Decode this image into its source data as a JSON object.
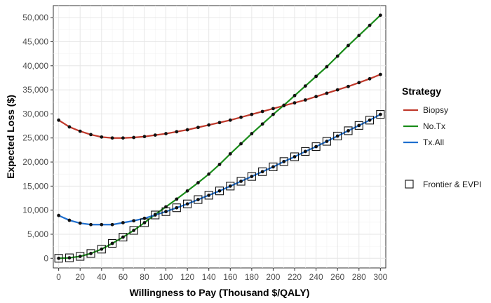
{
  "chart_data": {
    "type": "line",
    "xlabel": "Willingness to Pay (Thousand $/QALY)",
    "ylabel": "Expected Loss ($)",
    "xlim": [
      -5,
      305
    ],
    "ylim": [
      -2000,
      52500
    ],
    "xticks": [
      0,
      20,
      40,
      60,
      80,
      100,
      120,
      140,
      160,
      180,
      200,
      220,
      240,
      260,
      280,
      300
    ],
    "xtick_labels": [
      "0",
      "20",
      "40",
      "60",
      "80",
      "100",
      "120",
      "140",
      "160",
      "180",
      "200",
      "220",
      "240",
      "260",
      "280",
      "300"
    ],
    "yticks": [
      0,
      5000,
      10000,
      15000,
      20000,
      25000,
      30000,
      35000,
      40000,
      45000,
      50000
    ],
    "ytick_labels": [
      "0",
      "5,000",
      "10,000",
      "15,000",
      "20,000",
      "25,000",
      "30,000",
      "35,000",
      "40,000",
      "45,000",
      "50,000"
    ],
    "grid": true,
    "legend_position": "right",
    "legend_title": "Strategy",
    "x": [
      0,
      10,
      20,
      30,
      40,
      50,
      60,
      70,
      80,
      90,
      100,
      110,
      120,
      130,
      140,
      150,
      160,
      170,
      180,
      190,
      200,
      210,
      220,
      230,
      240,
      250,
      260,
      270,
      280,
      290,
      300
    ],
    "series": [
      {
        "name": "Biopsy",
        "color": "#c0392b",
        "values": [
          28700,
          27300,
          26400,
          25700,
          25200,
          25000,
          25000,
          25100,
          25300,
          25600,
          25900,
          26300,
          26700,
          27200,
          27700,
          28200,
          28700,
          29300,
          29900,
          30500,
          31100,
          31700,
          32300,
          32900,
          33600,
          34300,
          35000,
          35700,
          36500,
          37300,
          38200
        ]
      },
      {
        "name": "No.Tx",
        "color": "#1a8c1a",
        "values": [
          0,
          100,
          400,
          1000,
          1900,
          3100,
          4400,
          5800,
          7400,
          9100,
          10700,
          12300,
          14000,
          15700,
          17500,
          19500,
          21700,
          23800,
          25900,
          27900,
          29900,
          31800,
          33800,
          35800,
          37800,
          39800,
          42000,
          44200,
          46300,
          48400,
          50500
        ]
      },
      {
        "name": "Tx.All",
        "color": "#1f6fcf",
        "values": [
          8900,
          7900,
          7300,
          7000,
          7000,
          7000,
          7400,
          7800,
          8300,
          9000,
          9700,
          10500,
          11300,
          12200,
          13100,
          14000,
          15000,
          16000,
          17000,
          18000,
          19000,
          20100,
          21100,
          22200,
          23200,
          24300,
          25400,
          26500,
          27600,
          28700,
          29900
        ]
      }
    ],
    "frontier": {
      "name": "Frontier & EVPI",
      "values": [
        0,
        100,
        400,
        1000,
        1900,
        3100,
        4400,
        5800,
        7400,
        9000,
        9700,
        10500,
        11300,
        12200,
        13100,
        14000,
        15000,
        16000,
        17000,
        18000,
        19000,
        20100,
        21100,
        22200,
        23200,
        24300,
        25400,
        26500,
        27600,
        28700,
        29900
      ]
    }
  }
}
